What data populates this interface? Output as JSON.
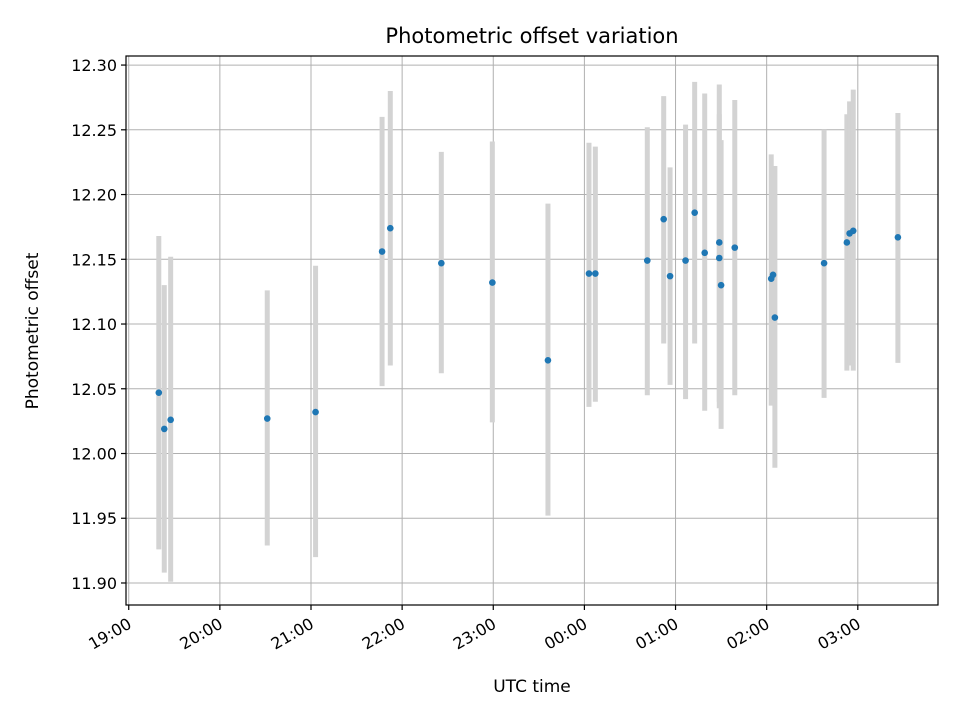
{
  "chart_data": {
    "type": "scatter",
    "title": "Photometric offset variation",
    "xlabel": "UTC time",
    "ylabel": "Photometric offset",
    "x_unit": "UTC time of day; hours after 24 fall on the following day",
    "xlim": [
      18.97,
      27.88
    ],
    "ylim": [
      11.883,
      12.307
    ],
    "grid": true,
    "x_ticks": [
      {
        "value": 19,
        "label": "19:00"
      },
      {
        "value": 20,
        "label": "20:00"
      },
      {
        "value": 21,
        "label": "21:00"
      },
      {
        "value": 22,
        "label": "22:00"
      },
      {
        "value": 23,
        "label": "23:00"
      },
      {
        "value": 24,
        "label": "00:00"
      },
      {
        "value": 25,
        "label": "01:00"
      },
      {
        "value": 26,
        "label": "02:00"
      },
      {
        "value": 27,
        "label": "03:00"
      }
    ],
    "y_ticks": [
      {
        "value": 11.9,
        "label": "11.90"
      },
      {
        "value": 11.95,
        "label": "11.95"
      },
      {
        "value": 12.0,
        "label": "12.00"
      },
      {
        "value": 12.05,
        "label": "12.05"
      },
      {
        "value": 12.1,
        "label": "12.10"
      },
      {
        "value": 12.15,
        "label": "12.15"
      },
      {
        "value": 12.2,
        "label": "12.20"
      },
      {
        "value": 12.25,
        "label": "12.25"
      },
      {
        "value": 12.3,
        "label": "12.30"
      }
    ],
    "marker_color": "#1f77b4",
    "errorbar_color": "#d3d3d3",
    "points": [
      {
        "x": 19.33,
        "y": 12.047,
        "ylow": 11.926,
        "yhigh": 12.168
      },
      {
        "x": 19.39,
        "y": 12.019,
        "ylow": 11.908,
        "yhigh": 12.13
      },
      {
        "x": 19.46,
        "y": 12.026,
        "ylow": 11.901,
        "yhigh": 12.152
      },
      {
        "x": 20.52,
        "y": 12.027,
        "ylow": 11.929,
        "yhigh": 12.126
      },
      {
        "x": 21.05,
        "y": 12.032,
        "ylow": 11.92,
        "yhigh": 12.145
      },
      {
        "x": 21.78,
        "y": 12.156,
        "ylow": 12.052,
        "yhigh": 12.26
      },
      {
        "x": 21.87,
        "y": 12.174,
        "ylow": 12.068,
        "yhigh": 12.28
      },
      {
        "x": 22.43,
        "y": 12.147,
        "ylow": 12.062,
        "yhigh": 12.233
      },
      {
        "x": 22.99,
        "y": 12.132,
        "ylow": 12.024,
        "yhigh": 12.241
      },
      {
        "x": 23.6,
        "y": 12.072,
        "ylow": 11.952,
        "yhigh": 12.193
      },
      {
        "x": 24.05,
        "y": 12.139,
        "ylow": 12.036,
        "yhigh": 12.24
      },
      {
        "x": 24.12,
        "y": 12.139,
        "ylow": 12.04,
        "yhigh": 12.237
      },
      {
        "x": 24.69,
        "y": 12.149,
        "ylow": 12.045,
        "yhigh": 12.252
      },
      {
        "x": 24.87,
        "y": 12.181,
        "ylow": 12.085,
        "yhigh": 12.276
      },
      {
        "x": 24.94,
        "y": 12.137,
        "ylow": 12.053,
        "yhigh": 12.221
      },
      {
        "x": 25.11,
        "y": 12.149,
        "ylow": 12.042,
        "yhigh": 12.254
      },
      {
        "x": 25.21,
        "y": 12.186,
        "ylow": 12.085,
        "yhigh": 12.287
      },
      {
        "x": 25.32,
        "y": 12.155,
        "ylow": 12.033,
        "yhigh": 12.278
      },
      {
        "x": 25.48,
        "y": 12.163,
        "ylow": 12.035,
        "yhigh": 12.285
      },
      {
        "x": 25.48,
        "y": 12.151,
        "ylow": 12.04,
        "yhigh": 12.262
      },
      {
        "x": 25.5,
        "y": 12.13,
        "ylow": 12.019,
        "yhigh": 12.242
      },
      {
        "x": 25.65,
        "y": 12.159,
        "ylow": 12.045,
        "yhigh": 12.273
      },
      {
        "x": 26.05,
        "y": 12.135,
        "ylow": 12.037,
        "yhigh": 12.231
      },
      {
        "x": 26.07,
        "y": 12.138,
        "ylow": 12.054,
        "yhigh": 12.222
      },
      {
        "x": 26.09,
        "y": 12.105,
        "ylow": 11.989,
        "yhigh": 12.222
      },
      {
        "x": 26.63,
        "y": 12.147,
        "ylow": 12.043,
        "yhigh": 12.25
      },
      {
        "x": 26.88,
        "y": 12.163,
        "ylow": 12.064,
        "yhigh": 12.262
      },
      {
        "x": 26.91,
        "y": 12.17,
        "ylow": 12.068,
        "yhigh": 12.272
      },
      {
        "x": 26.95,
        "y": 12.172,
        "ylow": 12.064,
        "yhigh": 12.281
      },
      {
        "x": 27.44,
        "y": 12.167,
        "ylow": 12.07,
        "yhigh": 12.263
      }
    ]
  }
}
